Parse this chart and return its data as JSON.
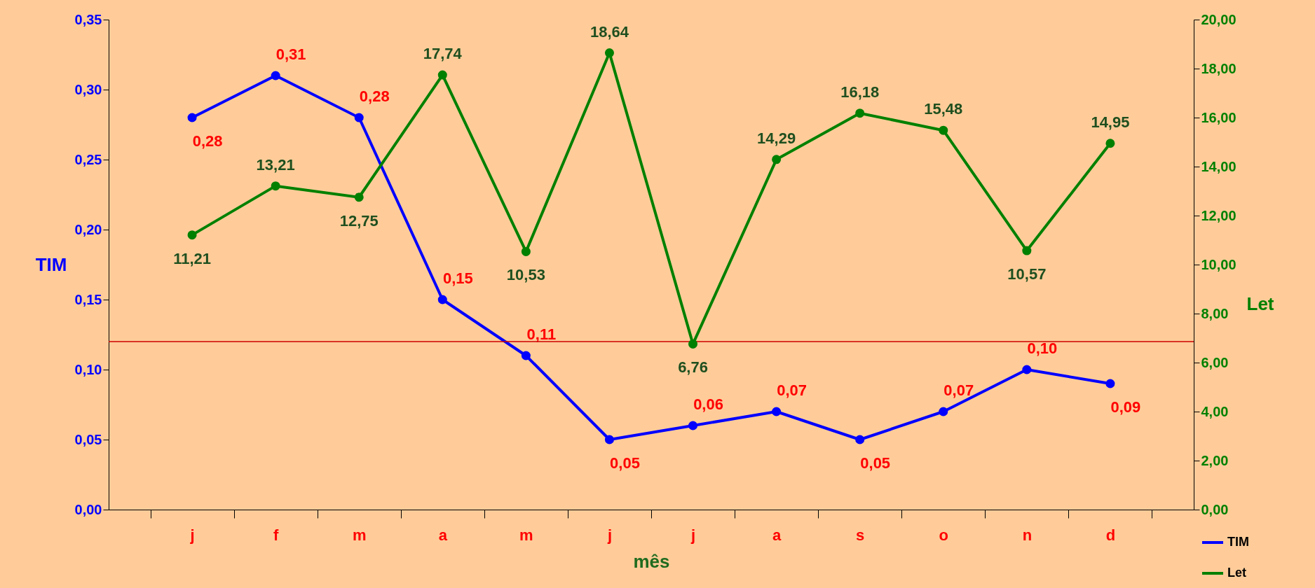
{
  "chart_data": {
    "type": "line",
    "xlabel": "mês",
    "ylabel": "TIM",
    "y2label": "Let",
    "categories": [
      "j",
      "f",
      "m",
      "a",
      "m",
      "j",
      "j",
      "a",
      "s",
      "o",
      "n",
      "d"
    ],
    "series": [
      {
        "name": "TIM",
        "color": "#0000ff",
        "values": [
          0.28,
          0.31,
          0.28,
          0.15,
          0.11,
          0.05,
          0.06,
          0.07,
          0.05,
          0.07,
          0.1,
          0.09
        ],
        "value_labels": [
          "0,28",
          "0,31",
          "0,28",
          "0,15",
          "0,11",
          "0,05",
          "0,06",
          "0,07",
          "0,05",
          "0,07",
          "0,10",
          "0,09"
        ]
      },
      {
        "name": "Let",
        "color": "#008000",
        "axis": "y2",
        "values": [
          11.21,
          13.21,
          12.75,
          17.74,
          10.53,
          18.64,
          6.76,
          14.29,
          16.18,
          15.48,
          10.57,
          14.95
        ],
        "value_labels": [
          "11,21",
          "13,21",
          "12,75",
          "17,74",
          "10,53",
          "18,64",
          "6,76",
          "14,29",
          "16,18",
          "15,48",
          "10,57",
          "14,95"
        ]
      }
    ],
    "ylim": [
      0,
      0.35
    ],
    "yticks": [
      {
        "value": 0,
        "label": "0,00"
      },
      {
        "value": 0.05,
        "label": "0,05"
      },
      {
        "value": 0.1,
        "label": "0,10"
      },
      {
        "value": 0.15,
        "label": "0,15"
      },
      {
        "value": 0.2,
        "label": "0,20"
      },
      {
        "value": 0.25,
        "label": "0,25"
      },
      {
        "value": 0.3,
        "label": "0,30"
      },
      {
        "value": 0.35,
        "label": "0,35"
      }
    ],
    "y2lim": [
      0,
      20
    ],
    "y2ticks": [
      {
        "value": 0,
        "label": "0,00"
      },
      {
        "value": 2,
        "label": "2,00"
      },
      {
        "value": 4,
        "label": "4,00"
      },
      {
        "value": 6,
        "label": "6,00"
      },
      {
        "value": 8,
        "label": "8,00"
      },
      {
        "value": 10,
        "label": "10,00"
      },
      {
        "value": 12,
        "label": "12,00"
      },
      {
        "value": 14,
        "label": "14,00"
      },
      {
        "value": 16,
        "label": "16,00"
      },
      {
        "value": 18,
        "label": "18,00"
      },
      {
        "value": 20,
        "label": "20,00"
      }
    ],
    "ref_lines": [
      {
        "axis": "y",
        "value": 0.12,
        "color": "#cc0000"
      }
    ],
    "marker": "circle",
    "line_style": "solid",
    "grid": false,
    "legend": "bottom right"
  }
}
